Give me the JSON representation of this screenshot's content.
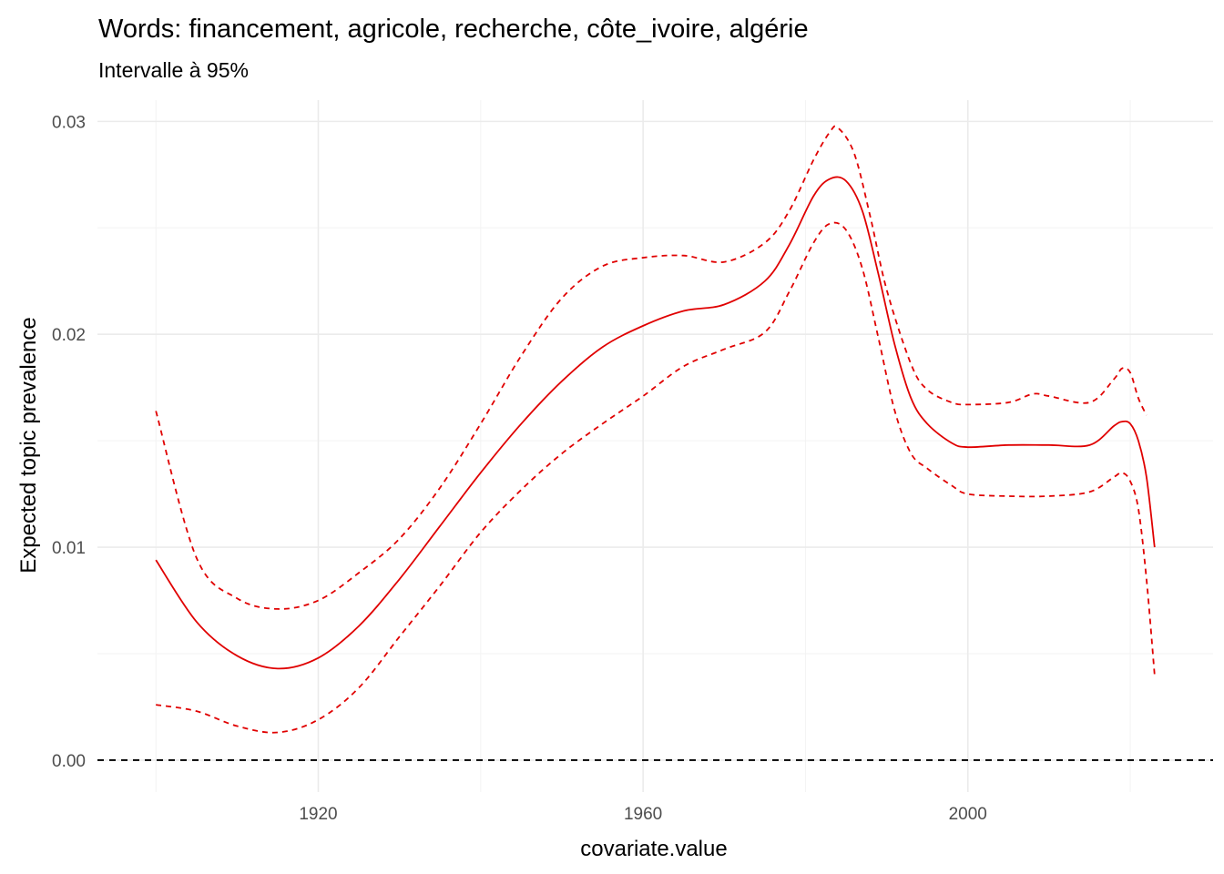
{
  "chart_data": {
    "type": "line",
    "title": "Words: financement, agricole, recherche, côte_ivoire, algérie",
    "subtitle": "Intervalle à 95%",
    "xlabel": "covariate.value",
    "ylabel": "Expected topic prevalence",
    "xlim": [
      1892.8,
      2030.2
    ],
    "ylim": [
      -0.0015,
      0.031
    ],
    "x_ticks": [
      1920,
      1960,
      2000
    ],
    "x_tick_labels": [
      "1920",
      "1960",
      "2000"
    ],
    "y_ticks": [
      0.0,
      0.01,
      0.02,
      0.03
    ],
    "y_tick_labels": [
      "0.00",
      "0.01",
      "0.02",
      "0.03"
    ],
    "grid": true,
    "legend": "none",
    "colors": {
      "series": "#e00000",
      "reference": "#000000"
    },
    "reference_line": {
      "y": 0,
      "style": "dashed"
    },
    "series": [
      {
        "role": "estimate",
        "style": "solid",
        "x": [
          1900,
          1905,
          1910,
          1915,
          1920,
          1925,
          1930,
          1935,
          1940,
          1945,
          1950,
          1955,
          1960,
          1965,
          1970,
          1975,
          1978,
          1981,
          1983,
          1985,
          1987,
          1989,
          1991,
          1993,
          1995,
          1998,
          2000,
          2005,
          2010,
          2015,
          2018,
          2019,
          2020,
          2021,
          2022,
          2023
        ],
        "y": [
          0.0094,
          0.0065,
          0.0049,
          0.0043,
          0.0048,
          0.0063,
          0.0085,
          0.011,
          0.0135,
          0.0158,
          0.0178,
          0.0194,
          0.0204,
          0.0211,
          0.0214,
          0.0225,
          0.0242,
          0.0265,
          0.0273,
          0.0272,
          0.0258,
          0.0228,
          0.0195,
          0.017,
          0.0158,
          0.0149,
          0.0147,
          0.0148,
          0.0148,
          0.0148,
          0.0157,
          0.0159,
          0.0158,
          0.015,
          0.0133,
          0.01
        ]
      },
      {
        "role": "upper-95",
        "style": "dashed",
        "x": [
          1900,
          1905,
          1910,
          1915,
          1920,
          1925,
          1930,
          1935,
          1940,
          1945,
          1950,
          1955,
          1960,
          1965,
          1970,
          1975,
          1978,
          1981,
          1983,
          1984,
          1986,
          1988,
          1990,
          1993,
          1995,
          1998,
          2000,
          2005,
          2008,
          2010,
          2015,
          2018,
          2019,
          2020,
          2021,
          2022
        ],
        "y": [
          0.0164,
          0.0095,
          0.0076,
          0.0071,
          0.0075,
          0.0088,
          0.0104,
          0.0128,
          0.0158,
          0.019,
          0.0217,
          0.0232,
          0.0236,
          0.0237,
          0.0234,
          0.0243,
          0.0258,
          0.0282,
          0.0295,
          0.0297,
          0.0285,
          0.0255,
          0.0221,
          0.0186,
          0.0174,
          0.0168,
          0.0167,
          0.0168,
          0.0172,
          0.0171,
          0.0168,
          0.0179,
          0.0184,
          0.0182,
          0.017,
          0.0162
        ]
      },
      {
        "role": "lower-95",
        "style": "dashed",
        "x": [
          1900,
          1905,
          1910,
          1915,
          1920,
          1925,
          1930,
          1935,
          1940,
          1945,
          1950,
          1955,
          1960,
          1965,
          1970,
          1975,
          1978,
          1981,
          1983,
          1985,
          1987,
          1989,
          1991,
          1993,
          1995,
          1998,
          2000,
          2005,
          2010,
          2015,
          2018,
          2019,
          2020,
          2021,
          2022,
          2023
        ],
        "y": [
          0.0026,
          0.0023,
          0.0016,
          0.0013,
          0.0019,
          0.0034,
          0.0058,
          0.0082,
          0.0107,
          0.0127,
          0.0144,
          0.0158,
          0.0171,
          0.0185,
          0.0193,
          0.0201,
          0.022,
          0.0243,
          0.0252,
          0.0249,
          0.0231,
          0.0198,
          0.0164,
          0.0144,
          0.0137,
          0.0129,
          0.0125,
          0.0124,
          0.0124,
          0.0126,
          0.0133,
          0.0135,
          0.0131,
          0.0118,
          0.0085,
          0.004
        ]
      }
    ]
  }
}
